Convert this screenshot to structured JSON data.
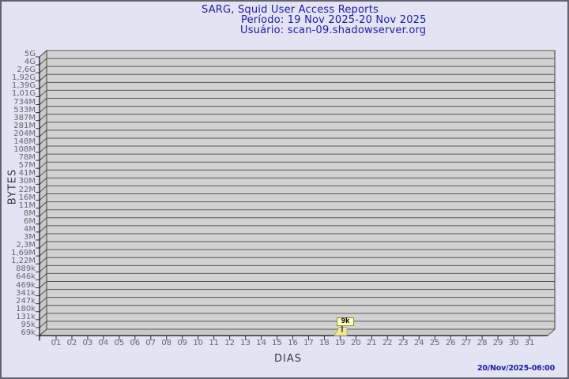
{
  "title": {
    "line1": "SARG, Squid User Access Reports",
    "line2": "Período: 19 Nov 2025-20 Nov 2025",
    "line3": "Usuário: scan-09.shadowserver.org"
  },
  "chart_data": {
    "type": "bar",
    "title": "SARG, Squid User Access Reports",
    "period": "19 Nov 2025-20 Nov 2025",
    "user": "scan-09.shadowserver.org",
    "xlabel": "DIAS",
    "ylabel": "BYTES",
    "y_scale": "log",
    "grid": true,
    "x_categories": [
      "01",
      "02",
      "03",
      "04",
      "05",
      "06",
      "07",
      "08",
      "09",
      "10",
      "11",
      "12",
      "13",
      "14",
      "15",
      "16",
      "17",
      "18",
      "19",
      "20",
      "21",
      "22",
      "23",
      "24",
      "25",
      "26",
      "27",
      "28",
      "29",
      "30",
      "31"
    ],
    "y_tick_labels": [
      "5G",
      "4G",
      "2,6G",
      "1,92G",
      "1,39G",
      "1,01G",
      "734M",
      "533M",
      "387M",
      "281M",
      "204M",
      "148M",
      "108M",
      "78M",
      "57M",
      "41M",
      "30M",
      "22M",
      "16M",
      "11M",
      "8M",
      "6M",
      "4M",
      "3M",
      "2,3M",
      "1,69M",
      "1,22M",
      "889k",
      "646k",
      "469k",
      "341k",
      "247k",
      "180k",
      "131k",
      "95k",
      "69k"
    ],
    "points": [
      {
        "x": "19",
        "label": "9k",
        "value_bytes": 9000
      }
    ]
  },
  "footer": {
    "generated": "20/Nov/2025-06:00"
  },
  "colors": {
    "background": "#E3E3F4",
    "frame_border": "#63636F",
    "title_text": "#1D1D9E",
    "plot_face": "#D2D2D2",
    "plot_wall": "#C9C9C9",
    "gridline": "#575757",
    "axis_line": "#111111",
    "tick_label": "#666666",
    "bar_fill": "#F1E79C",
    "bar_label_bg": "#FFFFC8",
    "bar_label_border": "#8E8E2A",
    "timestamp_text": "#1D1D9E"
  }
}
